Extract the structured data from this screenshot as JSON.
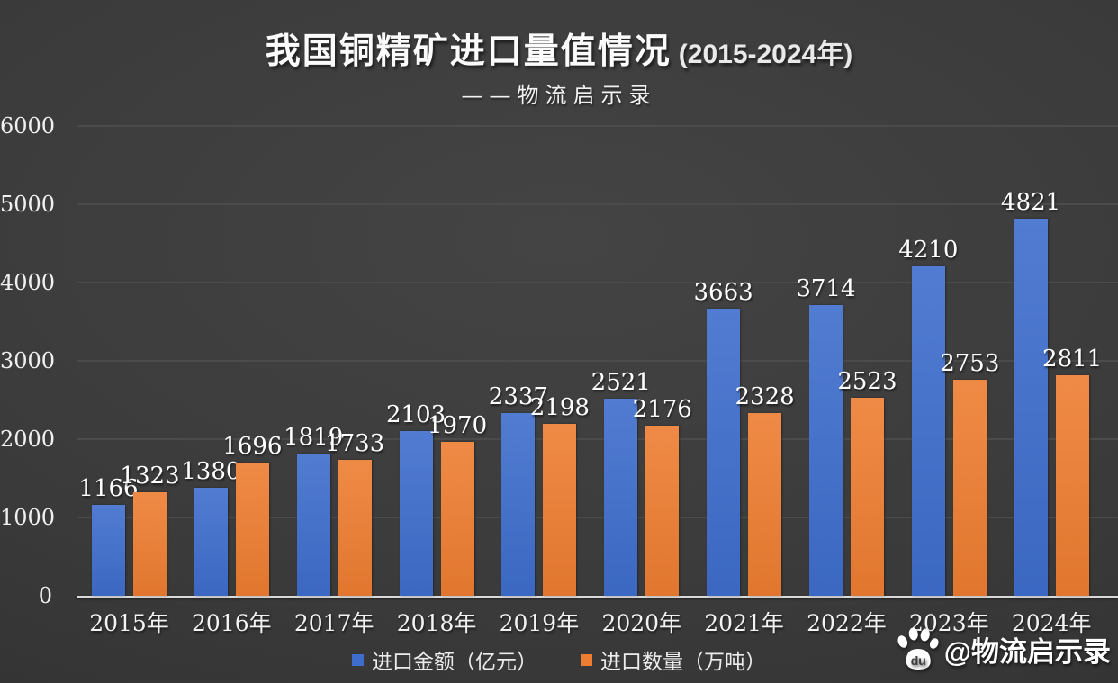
{
  "page": {
    "title_main": "我国铜精矿进口量值情况",
    "title_range": "(2015-2024年)",
    "subtitle": "——物流启示录"
  },
  "chart_data": {
    "type": "bar",
    "title": "我国铜精矿进口量值情况 (2015-2024年)",
    "subtitle": "——物流启示录",
    "categories": [
      "2015年",
      "2016年",
      "2017年",
      "2018年",
      "2019年",
      "2020年",
      "2021年",
      "2022年",
      "2023年",
      "2024年"
    ],
    "series": [
      {
        "name": "进口金额（亿元）",
        "color": "#3E6DCC",
        "values": [
          1166,
          1380,
          1819,
          2103,
          2337,
          2521,
          3663,
          3714,
          4210,
          4821
        ]
      },
      {
        "name": "进口数量（万吨）",
        "color": "#ED7D31",
        "values": [
          1323,
          1696,
          1733,
          1970,
          2198,
          2176,
          2328,
          2523,
          2753,
          2811
        ]
      }
    ],
    "ylim": [
      0,
      6000
    ],
    "ytick_interval": 1000,
    "yticks": [
      "0",
      "1000",
      "2000",
      "3000",
      "4000",
      "5000",
      "6000"
    ],
    "grid": true,
    "legend_position": "bottom",
    "value_labels": true
  },
  "colors": {
    "background": "#3a3a3a",
    "gridline": "#4b4b4b",
    "axis": "#d9d9d9"
  },
  "watermark": {
    "icon": "baidu-paw-icon",
    "icon_text": "du",
    "text": "@物流启示录"
  }
}
